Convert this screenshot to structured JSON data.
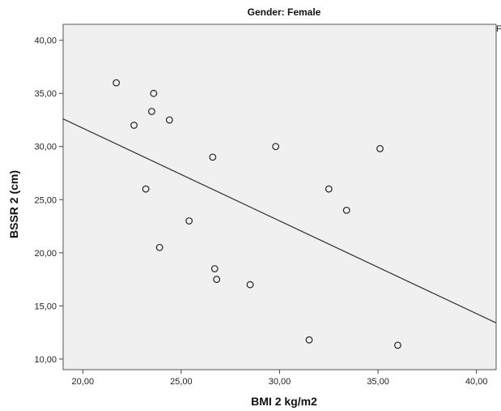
{
  "chart_data": {
    "type": "scatter",
    "title": "Gender: Female",
    "corner_mark": "F",
    "xlabel": "BMI 2 kg/m2",
    "ylabel": "BSSR 2 (cm)",
    "xlim": [
      19,
      41
    ],
    "ylim": [
      9,
      41.5
    ],
    "x_ticks": [
      20,
      25,
      30,
      35,
      40
    ],
    "x_tick_labels": [
      "20,00",
      "25,00",
      "30,00",
      "35,00",
      "40,00"
    ],
    "y_ticks": [
      10,
      15,
      20,
      25,
      30,
      35,
      40
    ],
    "y_tick_labels": [
      "10,00",
      "15,00",
      "20,00",
      "25,00",
      "30,00",
      "35,00",
      "40,00"
    ],
    "grid": false,
    "points": [
      {
        "x": 21.7,
        "y": 36.0
      },
      {
        "x": 23.6,
        "y": 35.0
      },
      {
        "x": 23.5,
        "y": 33.3
      },
      {
        "x": 22.6,
        "y": 32.0
      },
      {
        "x": 24.4,
        "y": 32.5
      },
      {
        "x": 26.6,
        "y": 29.0
      },
      {
        "x": 29.8,
        "y": 30.0
      },
      {
        "x": 35.1,
        "y": 29.8
      },
      {
        "x": 23.2,
        "y": 26.0
      },
      {
        "x": 32.5,
        "y": 26.0
      },
      {
        "x": 33.4,
        "y": 24.0
      },
      {
        "x": 25.4,
        "y": 23.0
      },
      {
        "x": 23.9,
        "y": 20.5
      },
      {
        "x": 26.7,
        "y": 18.5
      },
      {
        "x": 26.8,
        "y": 17.5
      },
      {
        "x": 28.5,
        "y": 17.0
      },
      {
        "x": 31.5,
        "y": 11.8
      },
      {
        "x": 36.0,
        "y": 11.3
      }
    ],
    "fit_line": {
      "x": [
        19,
        41
      ],
      "y": [
        32.6,
        13.4
      ]
    },
    "colors": {
      "plot_background": "#f0f0f0",
      "marker_stroke": "#222222",
      "line": "#333333",
      "frame": "#555555"
    }
  }
}
